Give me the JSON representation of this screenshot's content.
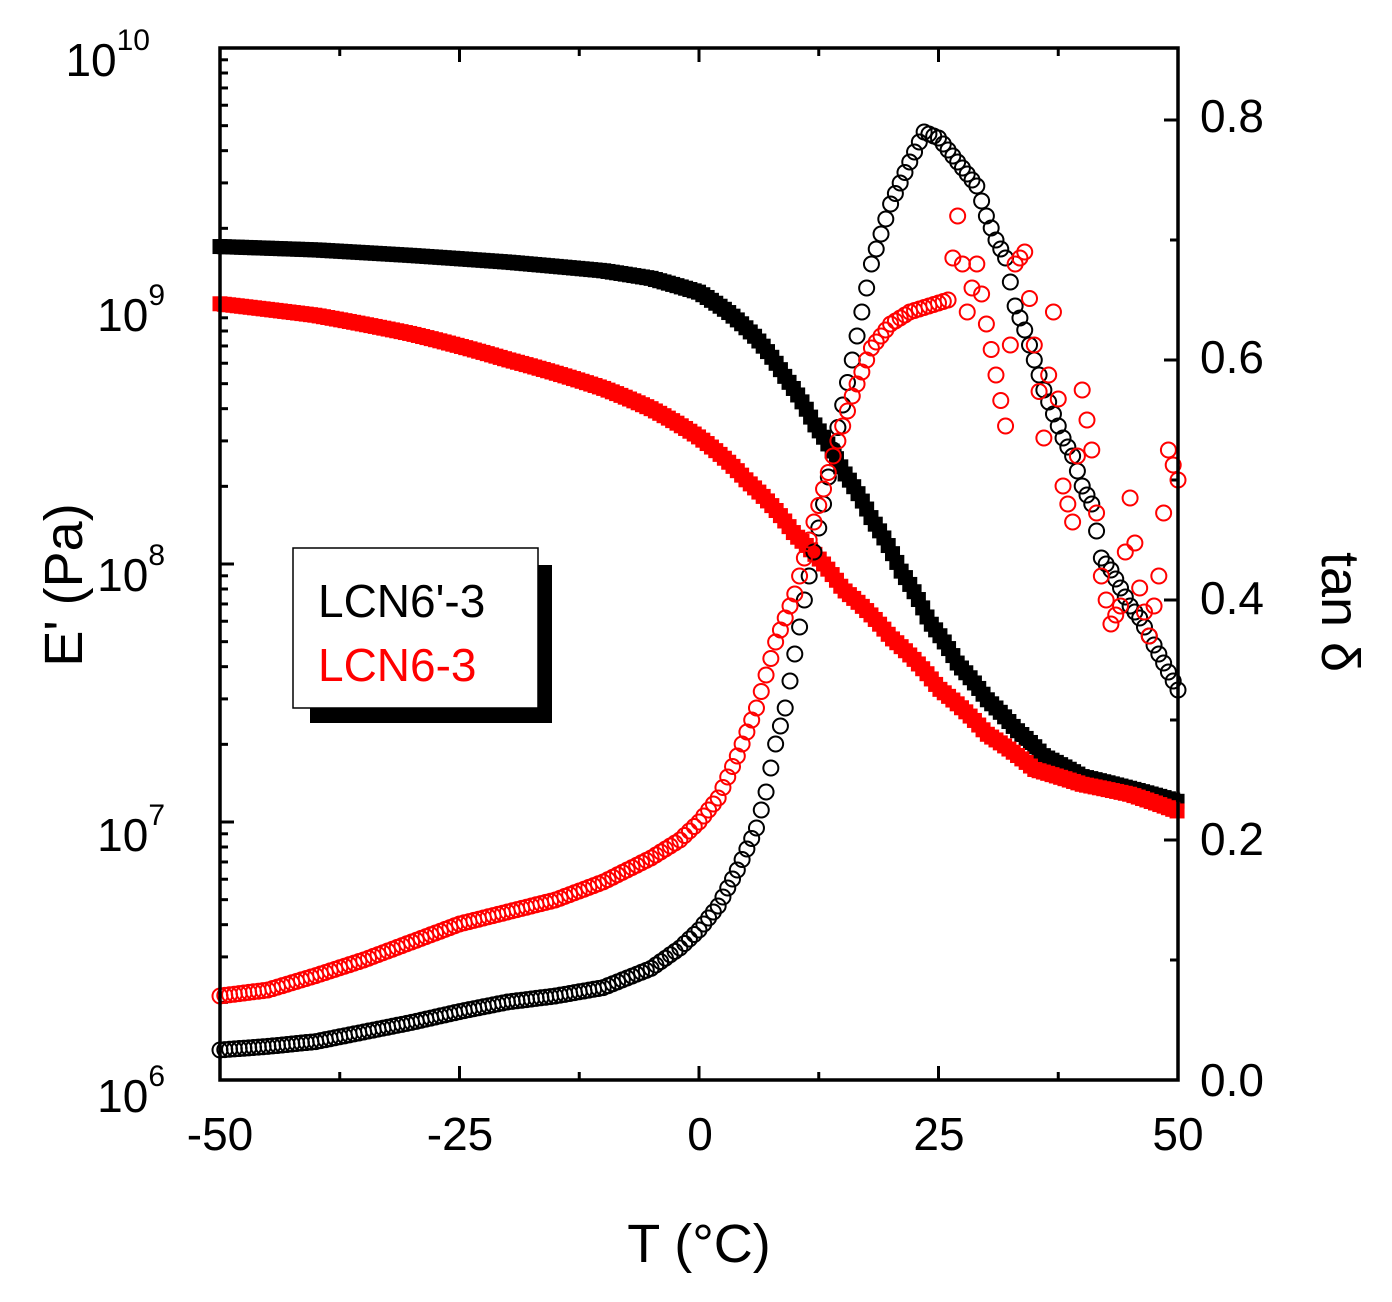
{
  "chart_data": {
    "type": "scatter",
    "title": "",
    "xlabel": "T (°C)",
    "ylabel_left": "E' (Pa)",
    "ylabel_right": "tan δ",
    "xlim": [
      -50,
      50
    ],
    "ylim_left": [
      1000000,
      10000000000
    ],
    "yscale_left": "log",
    "ylim_right": [
      0.0,
      0.86
    ],
    "x_ticks": [
      -50,
      -25,
      0,
      25,
      50
    ],
    "x_tick_labels": [
      "-50",
      "-25",
      "0",
      "25",
      "50"
    ],
    "y_left_ticks": [
      {
        "base": "10",
        "exp": "6",
        "value": 1000000
      },
      {
        "base": "10",
        "exp": "7",
        "value": 10000000
      },
      {
        "base": "10",
        "exp": "8",
        "value": 100000000
      },
      {
        "base": "10",
        "exp": "9",
        "value": 1000000000
      },
      {
        "base": "10",
        "exp": "10",
        "value": 10000000000
      }
    ],
    "y_right_ticks": [
      0.0,
      0.2,
      0.4,
      0.6,
      0.8
    ],
    "y_right_tick_labels": [
      "0.0",
      "0.2",
      "0.4",
      "0.6",
      "0.8"
    ],
    "legend": {
      "placement": "left-middle",
      "entries": [
        {
          "label": "LCN6'-3",
          "color": "#000000"
        },
        {
          "label": "LCN6-3",
          "color": "#ff0000"
        }
      ]
    },
    "series": [
      {
        "name": "LCN6'-3 E'",
        "axis": "left",
        "marker": "filled-square",
        "color": "#000000",
        "points": [
          [
            -50,
            1700000000.0
          ],
          [
            -40,
            1650000000.0
          ],
          [
            -30,
            1570000000.0
          ],
          [
            -20,
            1480000000.0
          ],
          [
            -10,
            1370000000.0
          ],
          [
            -5,
            1280000000.0
          ],
          [
            0,
            1130000000.0
          ],
          [
            3,
            950000000.0
          ],
          [
            6,
            750000000.0
          ],
          [
            9,
            530000000.0
          ],
          [
            12,
            350000000.0
          ],
          [
            15,
            230000000.0
          ],
          [
            18,
            150000000.0
          ],
          [
            21,
            95000000.0
          ],
          [
            24,
            60000000.0
          ],
          [
            27,
            41000000.0
          ],
          [
            30,
            30000000.0
          ],
          [
            33,
            23000000.0
          ],
          [
            36,
            18000000.0
          ],
          [
            40,
            15000000.0
          ],
          [
            45,
            13500000.0
          ],
          [
            50,
            12000000.0
          ]
        ]
      },
      {
        "name": "LCN6-3 E'",
        "axis": "left",
        "marker": "filled-square",
        "color": "#ff0000",
        "points": [
          [
            -50,
            1020000000.0
          ],
          [
            -40,
            920000000.0
          ],
          [
            -30,
            780000000.0
          ],
          [
            -20,
            620000000.0
          ],
          [
            -10,
            480000000.0
          ],
          [
            -5,
            400000000.0
          ],
          [
            0,
            310000000.0
          ],
          [
            5,
            210000000.0
          ],
          [
            10,
            130000000.0
          ],
          [
            15,
            80000000.0
          ],
          [
            20,
            52000000.0
          ],
          [
            25,
            33000000.0
          ],
          [
            30,
            22000000.0
          ],
          [
            35,
            16000000.0
          ],
          [
            40,
            14000000.0
          ],
          [
            45,
            12800000.0
          ],
          [
            50,
            11000000.0
          ]
        ]
      },
      {
        "name": "LCN6'-3 tan δ",
        "axis": "right",
        "marker": "open-circle",
        "color": "#000000",
        "points": [
          [
            -50,
            0.025
          ],
          [
            -45,
            0.028
          ],
          [
            -40,
            0.032
          ],
          [
            -35,
            0.04
          ],
          [
            -30,
            0.048
          ],
          [
            -25,
            0.057
          ],
          [
            -20,
            0.065
          ],
          [
            -15,
            0.07
          ],
          [
            -10,
            0.077
          ],
          [
            -5,
            0.093
          ],
          [
            -2,
            0.11
          ],
          [
            0,
            0.125
          ],
          [
            2,
            0.145
          ],
          [
            4,
            0.175
          ],
          [
            6,
            0.21
          ],
          [
            7,
            0.24
          ],
          [
            8,
            0.28
          ],
          [
            9,
            0.31
          ],
          [
            10,
            0.355
          ],
          [
            11,
            0.4
          ],
          [
            12,
            0.44
          ],
          [
            13,
            0.48
          ],
          [
            14,
            0.525
          ],
          [
            16,
            0.6
          ],
          [
            18,
            0.68
          ],
          [
            20,
            0.73
          ],
          [
            22,
            0.765
          ],
          [
            23.5,
            0.79
          ],
          [
            25,
            0.785
          ],
          [
            26,
            0.775
          ],
          [
            27,
            0.765
          ],
          [
            28,
            0.755
          ],
          [
            29,
            0.745
          ],
          [
            30,
            0.72
          ],
          [
            31,
            0.7
          ],
          [
            32,
            0.685
          ],
          [
            33,
            0.645
          ],
          [
            34,
            0.625
          ],
          [
            36,
            0.575
          ],
          [
            37,
            0.555
          ],
          [
            38,
            0.535
          ],
          [
            39,
            0.52
          ],
          [
            40,
            0.495
          ],
          [
            41,
            0.48
          ],
          [
            42,
            0.435
          ],
          [
            43,
            0.425
          ],
          [
            44,
            0.41
          ],
          [
            45,
            0.395
          ],
          [
            46,
            0.385
          ],
          [
            47,
            0.37
          ],
          [
            48,
            0.355
          ],
          [
            49,
            0.34
          ],
          [
            50,
            0.325
          ]
        ]
      },
      {
        "name": "LCN6-3 tan δ",
        "axis": "right",
        "marker": "open-circle",
        "color": "#ff0000",
        "points": [
          [
            -50,
            0.07
          ],
          [
            -45,
            0.075
          ],
          [
            -40,
            0.087
          ],
          [
            -35,
            0.1
          ],
          [
            -30,
            0.115
          ],
          [
            -25,
            0.13
          ],
          [
            -20,
            0.14
          ],
          [
            -15,
            0.15
          ],
          [
            -10,
            0.165
          ],
          [
            -5,
            0.185
          ],
          [
            -2,
            0.2
          ],
          [
            0,
            0.215
          ],
          [
            2,
            0.235
          ],
          [
            4,
            0.27
          ],
          [
            6,
            0.31
          ],
          [
            8,
            0.365
          ],
          [
            10,
            0.405
          ],
          [
            12,
            0.465
          ],
          [
            14,
            0.52
          ],
          [
            16,
            0.57
          ],
          [
            18,
            0.61
          ],
          [
            20,
            0.63
          ],
          [
            22,
            0.64
          ],
          [
            24,
            0.645
          ],
          [
            26,
            0.65
          ],
          [
            27,
            0.72
          ],
          [
            28,
            0.64
          ],
          [
            29,
            0.68
          ],
          [
            30,
            0.63
          ],
          [
            32,
            0.545
          ],
          [
            33,
            0.68
          ],
          [
            34,
            0.69
          ],
          [
            36,
            0.535
          ],
          [
            37,
            0.64
          ],
          [
            38,
            0.495
          ],
          [
            39,
            0.465
          ],
          [
            40,
            0.575
          ],
          [
            41,
            0.525
          ],
          [
            42,
            0.42
          ],
          [
            43,
            0.38
          ],
          [
            44,
            0.395
          ],
          [
            45,
            0.485
          ],
          [
            46,
            0.41
          ],
          [
            47,
            0.37
          ],
          [
            48,
            0.42
          ],
          [
            49,
            0.525
          ],
          [
            50,
            0.5
          ]
        ]
      }
    ]
  }
}
